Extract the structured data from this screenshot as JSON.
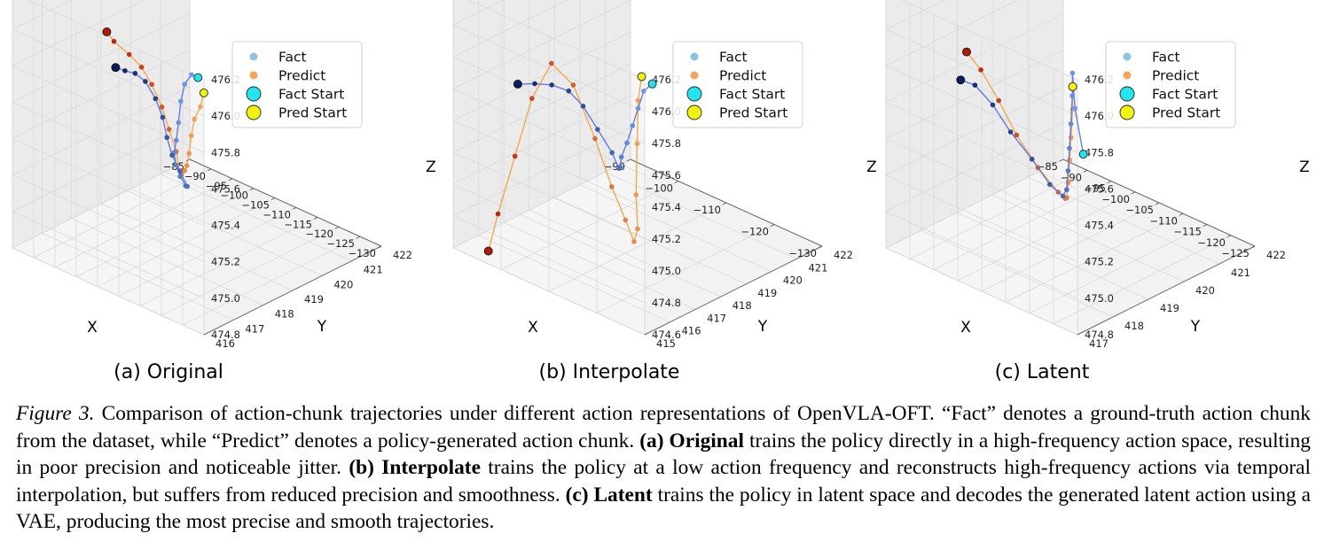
{
  "figure": {
    "caption": {
      "label": "Figure 3.",
      "intro": "Comparison of action-chunk trajectories under different action representations of OpenVLA-OFT. “Fact” denotes a ground-truth action chunk from the dataset, while “Predict” denotes a policy-generated action chunk.",
      "a_label": "(a) Original",
      "a_text": "trains the policy directly in a high-frequency action space, resulting in poor precision and noticeable jitter.",
      "b_label": "(b) Interpolate",
      "b_text": "trains the policy at a low action frequency and reconstructs high-frequency actions via temporal interpolation, but suffers from reduced precision and smoothness.",
      "c_label": "(c) Latent",
      "c_text": "trains the policy in latent space and decodes the generated latent action using a VAE, producing the most precise and smooth trajectories."
    },
    "legend": [
      "Fact",
      "Predict",
      "Fact Start",
      "Pred Start"
    ],
    "colors": {
      "fact": "#8ec4e0",
      "predict": "#f5a45d",
      "fact_start": "#22e5f0",
      "pred_start": "#f2f20f",
      "fact_line": "#5470e0",
      "predict_line": "#f5a040",
      "fact_end": "#0a1d5c",
      "pred_end": "#b01a0a"
    }
  },
  "chart_data": [
    {
      "type": "scatter",
      "subtitle": "(a) Original",
      "xlabel": "X",
      "ylabel": "Y",
      "zlabel": "Z",
      "x_ticks": [
        "−85",
        "−90",
        "−95",
        "−100",
        "−105",
        "−110",
        "−115",
        "−120",
        "−125",
        "−130"
      ],
      "y_ticks": [
        "416",
        "417",
        "418",
        "419",
        "420",
        "421",
        "422"
      ],
      "z_ticks": [
        "476.2",
        "476.0",
        "475.8",
        "475.6",
        "475.4",
        "475.2",
        "475.0",
        "474.8"
      ],
      "xlim": [
        -130,
        -85
      ],
      "ylim": [
        416,
        422
      ],
      "zlim": [
        474.8,
        476.2
      ],
      "series": [
        {
          "name": "Fact",
          "points": [
            [
              -88.5,
              416.3,
              476.15
            ],
            [
              -90.0,
              416.3,
              476.15
            ],
            [
              -93.0,
              416.5,
              476.05
            ],
            [
              -96.0,
              416.8,
              475.9
            ],
            [
              -100.0,
              417.3,
              475.7
            ],
            [
              -104.0,
              417.8,
              475.52
            ],
            [
              -108.0,
              418.3,
              475.37
            ],
            [
              -111.0,
              418.8,
              475.23
            ],
            [
              -113.5,
              419.3,
              475.1
            ],
            [
              -115.0,
              419.7,
              475.0
            ],
            [
              -116.0,
              419.9,
              474.97
            ],
            [
              -117.0,
              419.8,
              475.05
            ],
            [
              -117.5,
              419.6,
              475.15
            ],
            [
              -118.0,
              419.5,
              475.25
            ],
            [
              -119.0,
              419.5,
              475.35
            ],
            [
              -120.0,
              419.4,
              475.45
            ],
            [
              -121.0,
              419.2,
              475.55
            ],
            [
              -122.0,
              419.0,
              475.6
            ],
            [
              -123.0,
              418.8,
              475.62
            ],
            [
              -124.5,
              418.7,
              475.63
            ]
          ]
        },
        {
          "name": "Predict",
          "points": [
            [
              -88.5,
              416.5,
              476.05
            ],
            [
              -90.0,
              416.6,
              475.95
            ],
            [
              -93.5,
              416.9,
              475.82
            ],
            [
              -97.0,
              417.3,
              475.66
            ],
            [
              -101.0,
              417.8,
              475.48
            ],
            [
              -105.0,
              418.3,
              475.33
            ],
            [
              -109.0,
              418.8,
              475.22
            ],
            [
              -112.5,
              419.2,
              475.13
            ],
            [
              -115.0,
              419.5,
              475.1
            ],
            [
              -116.5,
              419.6,
              475.18
            ],
            [
              -117.5,
              419.5,
              475.3
            ],
            [
              -118.5,
              419.4,
              475.42
            ],
            [
              -119.5,
              419.2,
              475.55
            ],
            [
              -120.5,
              419.0,
              475.65
            ],
            [
              -122.0,
              418.8,
              475.72
            ],
            [
              -123.5,
              418.5,
              475.8
            ],
            [
              -124.5,
              418.4,
              475.85
            ]
          ]
        }
      ]
    },
    {
      "type": "scatter",
      "subtitle": "(b) Interpolate",
      "xlabel": "X",
      "ylabel": "Y",
      "zlabel": "Z",
      "x_ticks": [
        "−90",
        "−100",
        "−110",
        "−120",
        "−130"
      ],
      "y_ticks": [
        "415",
        "416",
        "417",
        "418",
        "419",
        "420",
        "421",
        "422"
      ],
      "z_ticks": [
        "476.2",
        "476.0",
        "475.8",
        "475.6",
        "475.4",
        "475.2",
        "475.0",
        "474.8",
        "474.6"
      ],
      "xlim": [
        -130,
        -88
      ],
      "ylim": [
        415,
        422
      ],
      "zlim": [
        474.6,
        476.2
      ],
      "series": [
        {
          "name": "Fact",
          "points": [
            [
              -88.0,
              415.3,
              476.15
            ],
            [
              -91.0,
              415.5,
              476.05
            ],
            [
              -95.0,
              416.0,
              475.85
            ],
            [
              -99.0,
              416.5,
              475.65
            ],
            [
              -103.0,
              417.0,
              475.45
            ],
            [
              -107.0,
              417.5,
              475.27
            ],
            [
              -110.0,
              418.0,
              475.13
            ],
            [
              -112.0,
              418.3,
              475.07
            ],
            [
              -113.5,
              418.3,
              475.15
            ],
            [
              -115.0,
              418.0,
              475.3
            ],
            [
              -116.5,
              417.7,
              475.45
            ],
            [
              -118.0,
              417.4,
              475.55
            ],
            [
              -119.5,
              417.0,
              475.6
            ],
            [
              -121.0,
              416.6,
              475.62
            ],
            [
              -122.5,
              416.2,
              475.63
            ]
          ]
        },
        {
          "name": "Predict",
          "points": [
            [
              -92.0,
              415.6,
              476.12
            ],
            [
              -95.0,
              416.0,
              475.9
            ],
            [
              -98.0,
              416.5,
              475.55
            ],
            [
              -101.0,
              417.0,
              475.15
            ],
            [
              -104.0,
              417.6,
              474.85
            ],
            [
              -107.0,
              418.0,
              474.7
            ],
            [
              -110.0,
              418.2,
              474.78
            ],
            [
              -113.0,
              418.2,
              474.95
            ],
            [
              -115.0,
              417.9,
              475.25
            ],
            [
              -117.0,
              417.4,
              475.6
            ],
            [
              -119.0,
              416.9,
              475.75
            ],
            [
              -120.5,
              416.4,
              475.55
            ],
            [
              -122.0,
              416.0,
              475.2
            ],
            [
              -123.5,
              415.6,
              474.85
            ],
            [
              -124.5,
              415.4,
              474.62
            ]
          ]
        }
      ]
    },
    {
      "type": "scatter",
      "subtitle": "(c) Latent",
      "xlabel": "X",
      "ylabel": "Y",
      "zlabel": "Z",
      "x_ticks": [
        "−85",
        "−90",
        "−95",
        "−100",
        "−105",
        "−110",
        "−115",
        "−120",
        "−125"
      ],
      "y_ticks": [
        "417",
        "418",
        "419",
        "420",
        "421",
        "422"
      ],
      "z_ticks": [
        "476.2",
        "476.0",
        "475.8",
        "475.6",
        "475.4",
        "475.2",
        "475.0",
        "474.8"
      ],
      "xlim": [
        -125,
        -85
      ],
      "ylim": [
        417,
        422
      ],
      "zlim": [
        474.8,
        476.2
      ],
      "series": [
        {
          "name": "Fact",
          "points": [
            [
              -86.0,
              417.3,
              475.75
            ],
            [
              -87.0,
              417.2,
              476.0
            ],
            [
              -89.0,
              417.4,
              476.15
            ],
            [
              -92.0,
              417.8,
              475.95
            ],
            [
              -96.0,
              418.3,
              475.7
            ],
            [
              -100.0,
              418.8,
              475.47
            ],
            [
              -104.0,
              419.3,
              475.25
            ],
            [
              -108.0,
              419.8,
              475.05
            ],
            [
              -111.0,
              420.1,
              474.95
            ],
            [
              -113.0,
              420.0,
              475.0
            ],
            [
              -114.5,
              419.7,
              475.15
            ],
            [
              -116.0,
              419.3,
              475.32
            ],
            [
              -117.5,
              419.0,
              475.48
            ],
            [
              -119.0,
              418.7,
              475.6
            ],
            [
              -120.5,
              418.5,
              475.63
            ]
          ]
        },
        {
          "name": "Predict",
          "points": [
            [
              -86.0,
              417.0,
              476.15
            ],
            [
              -89.0,
              417.4,
              475.95
            ],
            [
              -93.0,
              417.9,
              475.7
            ],
            [
              -97.0,
              418.4,
              475.48
            ],
            [
              -101.0,
              418.9,
              475.26
            ],
            [
              -105.0,
              419.4,
              475.08
            ],
            [
              -109.0,
              419.9,
              474.98
            ],
            [
              -112.0,
              420.1,
              474.96
            ],
            [
              -114.0,
              419.8,
              475.1
            ],
            [
              -115.5,
              419.4,
              475.3
            ],
            [
              -117.0,
              419.1,
              475.5
            ],
            [
              -118.5,
              418.8,
              475.68
            ],
            [
              -120.0,
              418.6,
              475.78
            ]
          ]
        }
      ]
    }
  ]
}
